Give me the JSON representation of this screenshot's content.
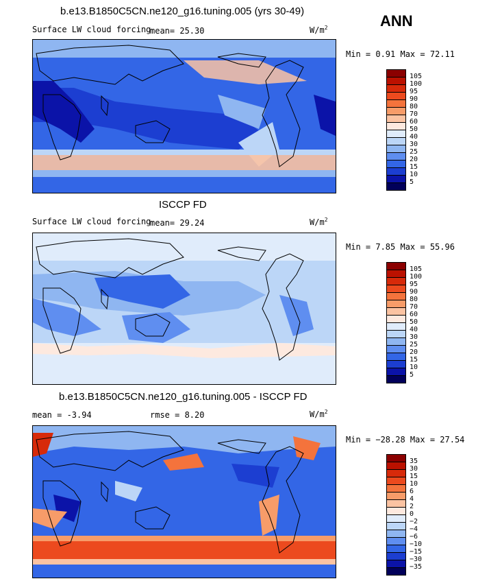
{
  "season": "ANN",
  "panels": [
    {
      "title": "b.e13.B1850C5CN.ne120_g16.tuning.005 (yrs 30-49)",
      "variable": "Surface LW cloud forcing",
      "mean_text": "mean=   25.30",
      "units": "W/m",
      "units_exp": "2",
      "minmax": "Min =    0.91 Max =   72.11",
      "colorbar_labels": [
        "105",
        "100",
        "95",
        "90",
        "80",
        "70",
        "60",
        "50",
        "40",
        "30",
        "25",
        "20",
        "15",
        "10",
        "5"
      ]
    },
    {
      "title": "ISCCP FD",
      "variable": "Surface LW cloud forcing",
      "mean_text": "mean=   29.24",
      "units": "W/m",
      "units_exp": "2",
      "minmax": "Min =    7.85 Max =   55.96",
      "colorbar_labels": [
        "105",
        "100",
        "95",
        "90",
        "80",
        "70",
        "60",
        "50",
        "40",
        "30",
        "25",
        "20",
        "15",
        "10",
        "5"
      ]
    },
    {
      "title": "b.e13.B1850C5CN.ne120_g16.tuning.005 - ISCCP FD",
      "mean_text": "mean =   -3.94",
      "rmse_text": "rmse =    8.20",
      "units": "W/m",
      "units_exp": "2",
      "minmax": "Min = −28.28 Max =   27.54",
      "colorbar_labels": [
        "35",
        "30",
        "15",
        "10",
        "6",
        "4",
        "2",
        "0",
        "−2",
        "−4",
        "−6",
        "−10",
        "−15",
        "−30",
        "−35"
      ]
    }
  ],
  "colors": {
    "scale": [
      "#8b0000",
      "#bb1100",
      "#d72a0a",
      "#ec4a1e",
      "#f4733c",
      "#f79c69",
      "#fbc3a2",
      "#fde9df",
      "#e0ecfb",
      "#bcd6f7",
      "#8fb6f1",
      "#5f8ef0",
      "#3366e6",
      "#1c3ed1",
      "#0b13a8",
      "#01005a"
    ]
  }
}
